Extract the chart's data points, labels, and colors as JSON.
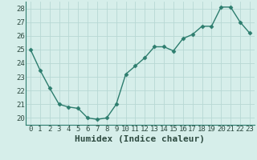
{
  "x": [
    0,
    1,
    2,
    3,
    4,
    5,
    6,
    7,
    8,
    9,
    10,
    11,
    12,
    13,
    14,
    15,
    16,
    17,
    18,
    19,
    20,
    21,
    22,
    23
  ],
  "y": [
    25.0,
    23.5,
    22.2,
    21.0,
    20.8,
    20.7,
    20.0,
    19.9,
    20.0,
    21.0,
    23.2,
    23.8,
    24.4,
    25.2,
    25.2,
    24.9,
    25.8,
    26.1,
    26.7,
    26.7,
    28.1,
    28.1,
    27.0,
    26.2
  ],
  "line_color": "#2d7d6e",
  "marker": "D",
  "marker_size": 2.5,
  "bg_color": "#d6eeea",
  "grid_color": "#b8d8d4",
  "xlabel": "Humidex (Indice chaleur)",
  "ylim": [
    19.5,
    28.5
  ],
  "xlim": [
    -0.5,
    23.5
  ],
  "yticks": [
    20,
    21,
    22,
    23,
    24,
    25,
    26,
    27,
    28
  ],
  "xticks": [
    0,
    1,
    2,
    3,
    4,
    5,
    6,
    7,
    8,
    9,
    10,
    11,
    12,
    13,
    14,
    15,
    16,
    17,
    18,
    19,
    20,
    21,
    22,
    23
  ],
  "tick_fontsize": 6.5,
  "xlabel_fontsize": 8
}
